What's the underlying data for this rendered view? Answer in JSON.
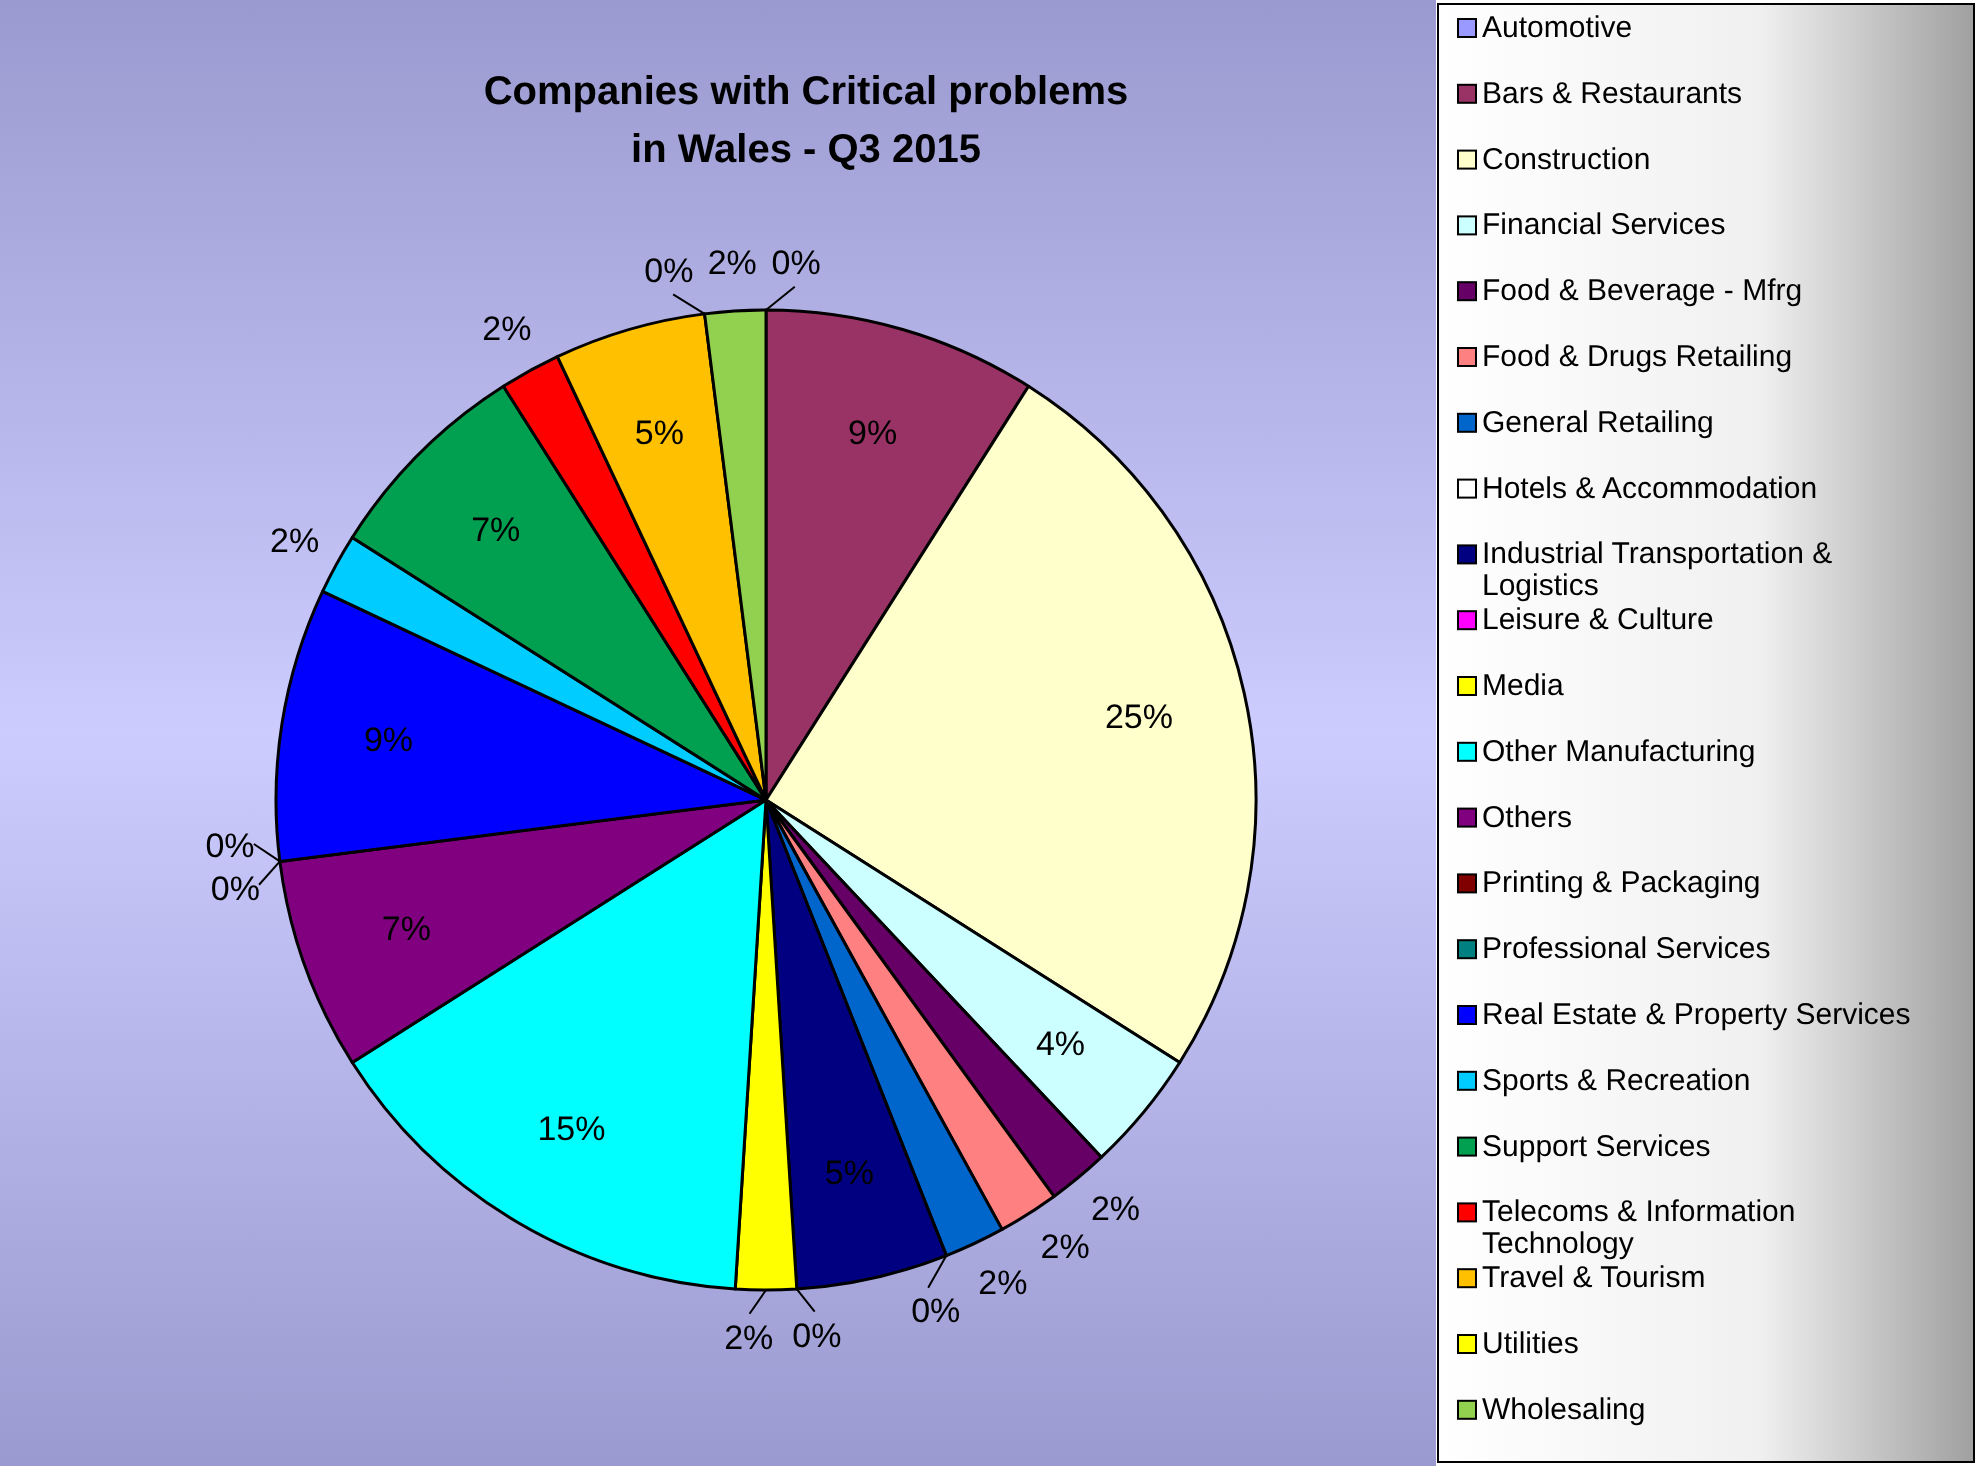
{
  "chart_data": {
    "type": "pie",
    "title": "Companies with Critical problems\nin Wales - Q3 2015",
    "legend": "right",
    "categories": [
      "Automotive",
      "Bars & Restaurants",
      "Construction",
      "Financial Services",
      "Food & Beverage - Mfrg",
      "Food & Drugs Retailing",
      "General Retailing",
      "Hotels & Accommodation",
      "Industrial Transportation & Logistics",
      "Leisure & Culture",
      "Media",
      "Other Manufacturing",
      "Others",
      "Printing & Packaging",
      "Professional Services",
      "Real Estate & Property Services",
      "Sports & Recreation",
      "Support Services",
      "Telecoms & Information Technology",
      "Travel & Tourism",
      "Utilities",
      "Wholesaling"
    ],
    "values": [
      0,
      9,
      25,
      4,
      2,
      2,
      2,
      0,
      5,
      0,
      2,
      15,
      7,
      0,
      0,
      9,
      2,
      7,
      2,
      5,
      0,
      2
    ],
    "value_labels": [
      "0%",
      "9%",
      "25%",
      "4%",
      "2%",
      "2%",
      "2%",
      "0%",
      "5%",
      "0%",
      "2%",
      "15%",
      "7%",
      "0%",
      "0%",
      "9%",
      "2%",
      "7%",
      "2%",
      "5%",
      "0%",
      "2%"
    ],
    "colors": [
      "#9999ff",
      "#993366",
      "#ffffcc",
      "#ccffff",
      "#660066",
      "#ff8080",
      "#0066cc",
      "#ffffff",
      "#000080",
      "#ff00ff",
      "#ffff00",
      "#00ffff",
      "#800080",
      "#800000",
      "#008080",
      "#0000ff",
      "#00ccff",
      "#00a050",
      "#ff0000",
      "#ffc000",
      "#ffff00",
      "#92d050"
    ]
  }
}
